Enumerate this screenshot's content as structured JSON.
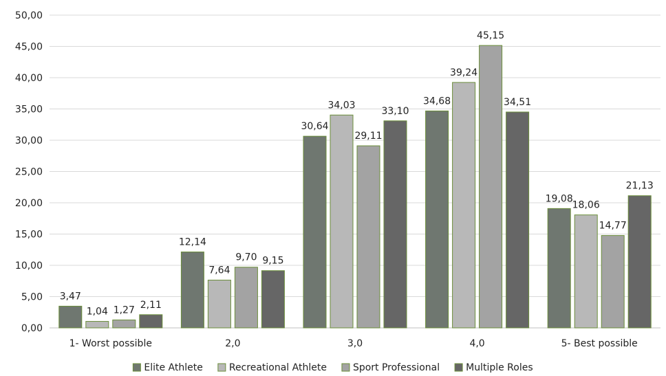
{
  "chart_data": {
    "type": "bar",
    "title": "",
    "xlabel": "",
    "ylabel": "",
    "ylim": [
      0,
      50
    ],
    "ytick_step": 5,
    "grid": true,
    "legend_position": "bottom",
    "categories": [
      "1- Worst possible",
      "2,0",
      "3,0",
      "4,0",
      "5- Best possible"
    ],
    "series": [
      {
        "name": "Elite Athlete",
        "color": "#6f7770",
        "values": [
          3.47,
          12.14,
          30.64,
          34.68,
          19.08
        ]
      },
      {
        "name": "Recreational Athlete",
        "color": "#b8b8b8",
        "values": [
          1.04,
          7.64,
          34.03,
          39.24,
          18.06
        ]
      },
      {
        "name": "Sport Professional",
        "color": "#a3a3a3",
        "values": [
          1.27,
          9.7,
          29.11,
          45.15,
          14.77
        ]
      },
      {
        "name": "Multiple Roles",
        "color": "#666666",
        "values": [
          2.11,
          9.15,
          33.1,
          34.51,
          21.13
        ]
      }
    ]
  }
}
